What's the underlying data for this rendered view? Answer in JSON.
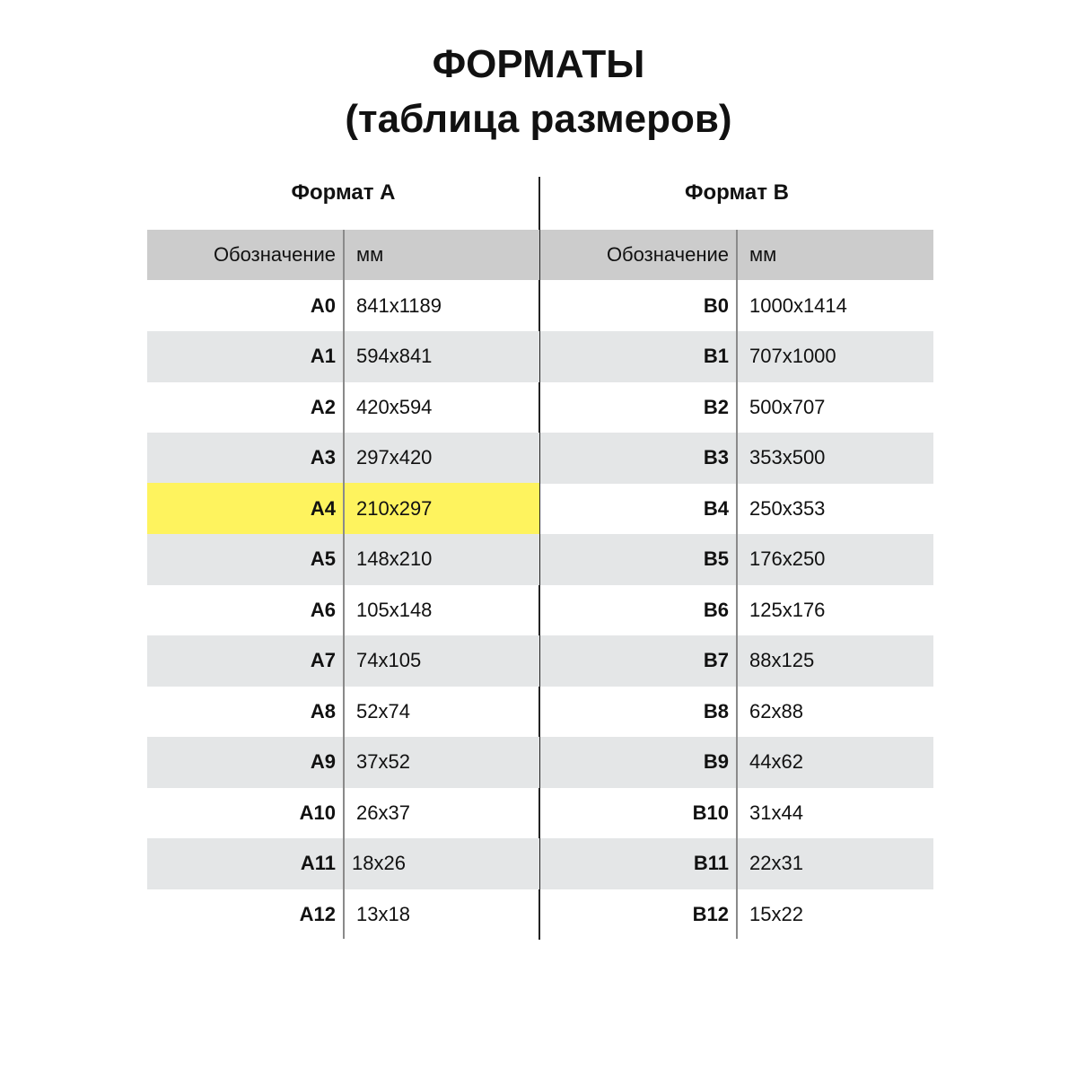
{
  "title_line1": "ФОРМАТЫ",
  "title_line2": "(таблица размеров)",
  "colors": {
    "header_bg": "#cccccc",
    "stripe_bg": "#e4e6e7",
    "highlight": "#fef35e"
  },
  "tables": [
    {
      "heading": "Формат А",
      "col_label": "Обозначение",
      "col_value": "мм",
      "highlight_row": 4,
      "rows": [
        [
          "A0",
          "841x1189"
        ],
        [
          "A1",
          "594x841"
        ],
        [
          "A2",
          "420x594"
        ],
        [
          "A3",
          "297x420"
        ],
        [
          "A4",
          "210x297"
        ],
        [
          "A5",
          "148x210"
        ],
        [
          "A6",
          "105x148"
        ],
        [
          "A7",
          "74x105"
        ],
        [
          "A8",
          "52x74"
        ],
        [
          "A9",
          "37x52"
        ],
        [
          "A10",
          "26x37"
        ],
        [
          "A11",
          "18x26"
        ],
        [
          "A12",
          "13x18"
        ]
      ]
    },
    {
      "heading": "Формат В",
      "col_label": "Обозначение",
      "col_value": "мм",
      "highlight_row": null,
      "rows": [
        [
          "B0",
          "1000x1414"
        ],
        [
          "B1",
          "707x1000"
        ],
        [
          "B2",
          "500x707"
        ],
        [
          "B3",
          "353x500"
        ],
        [
          "B4",
          "250x353"
        ],
        [
          "B5",
          "176x250"
        ],
        [
          "B6",
          "125x176"
        ],
        [
          "B7",
          "88x125"
        ],
        [
          "B8",
          "62x88"
        ],
        [
          "B9",
          "44x62"
        ],
        [
          "B10",
          "31x44"
        ],
        [
          "B11",
          "22x31"
        ],
        [
          "B12",
          "15x22"
        ]
      ]
    }
  ]
}
